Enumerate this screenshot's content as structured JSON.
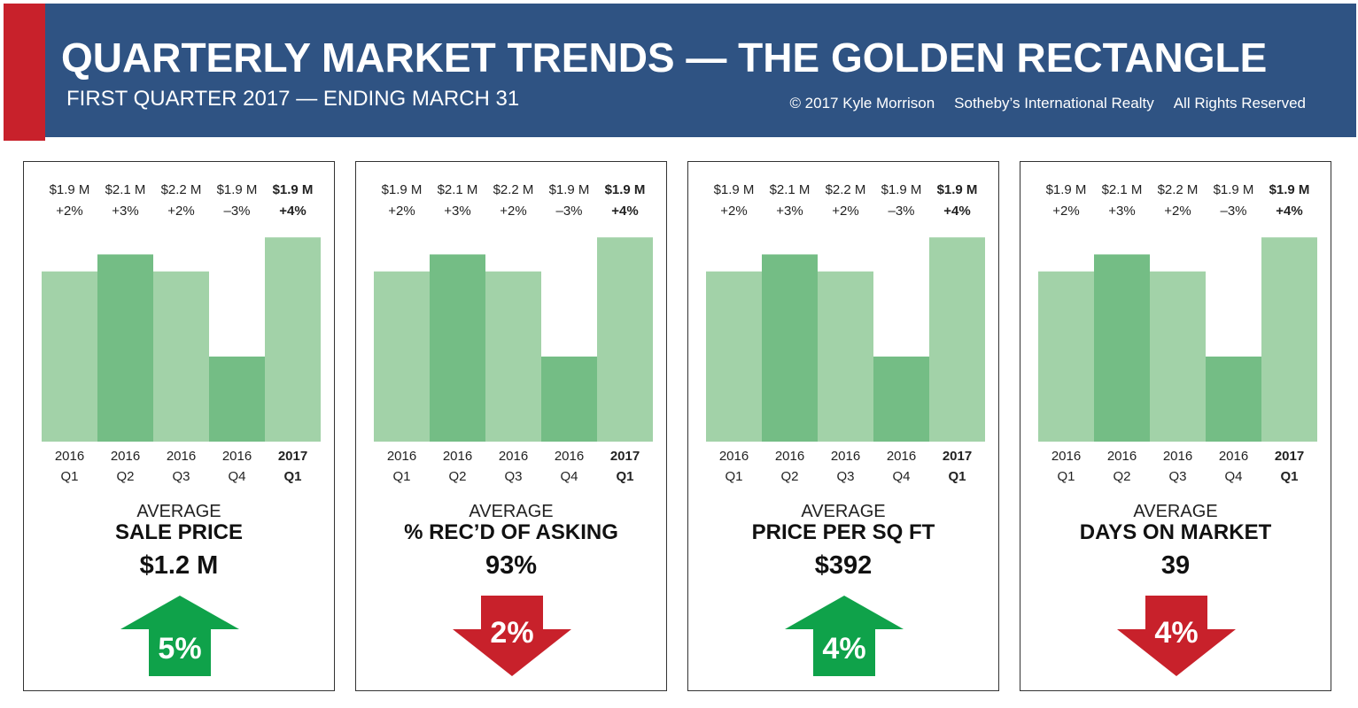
{
  "header": {
    "title": "QUARTERLY MARKET TRENDS — THE GOLDEN RECTANGLE",
    "subtitle": "FIRST QUARTER 2017 — ENDING MARCH 31",
    "credits": [
      "© 2017 Kyle Morrison",
      "Sotheby’s International Realty",
      "All Rights Reserved"
    ]
  },
  "colors": {
    "header_bg": "#2f5383",
    "accent_red": "#c8212b",
    "bar_light": "#a2d2a8",
    "bar_dark": "#74bd85",
    "arrow_up": "#0fa24a",
    "arrow_down": "#c8212b"
  },
  "chart_data": [
    {
      "type": "bar",
      "categories": [
        "2016 Q1",
        "2016 Q2",
        "2016 Q3",
        "2016 Q4",
        "2017 Q1"
      ],
      "category_lines": [
        [
          "2016",
          "Q1"
        ],
        [
          "2016",
          "Q2"
        ],
        [
          "2016",
          "Q3"
        ],
        [
          "2016",
          "Q4"
        ],
        [
          "2017",
          "Q1"
        ]
      ],
      "bar_labels": [
        "$1.9 M",
        "$2.1 M",
        "$2.2 M",
        "$1.9 M",
        "$1.9 M"
      ],
      "change_labels": [
        "+2%",
        "+3%",
        "+2%",
        "–3%",
        "+4%"
      ],
      "values": [
        2,
        3,
        2,
        -3,
        4
      ],
      "value_unit": "% change",
      "ylim": [
        -8,
        5
      ],
      "bar_shades": [
        "light",
        "dark",
        "light",
        "dark",
        "light"
      ],
      "metric": {
        "prefix": "AVERAGE",
        "name": "SALE PRICE",
        "value": "$1.2 M"
      },
      "trend": {
        "direction": "up",
        "percent": "5%"
      }
    },
    {
      "type": "bar",
      "categories": [
        "2016 Q1",
        "2016 Q2",
        "2016 Q3",
        "2016 Q4",
        "2017 Q1"
      ],
      "category_lines": [
        [
          "2016",
          "Q1"
        ],
        [
          "2016",
          "Q2"
        ],
        [
          "2016",
          "Q3"
        ],
        [
          "2016",
          "Q4"
        ],
        [
          "2017",
          "Q1"
        ]
      ],
      "bar_labels": [
        "$1.9 M",
        "$2.1 M",
        "$2.2 M",
        "$1.9 M",
        "$1.9 M"
      ],
      "change_labels": [
        "+2%",
        "+3%",
        "+2%",
        "–3%",
        "+4%"
      ],
      "values": [
        2,
        3,
        2,
        -3,
        4
      ],
      "value_unit": "% change",
      "ylim": [
        -8,
        5
      ],
      "bar_shades": [
        "light",
        "dark",
        "light",
        "dark",
        "light"
      ],
      "metric": {
        "prefix": "AVERAGE",
        "name": "% REC’D OF ASKING",
        "value": "93%"
      },
      "trend": {
        "direction": "down",
        "percent": "2%"
      }
    },
    {
      "type": "bar",
      "categories": [
        "2016 Q1",
        "2016 Q2",
        "2016 Q3",
        "2016 Q4",
        "2017 Q1"
      ],
      "category_lines": [
        [
          "2016",
          "Q1"
        ],
        [
          "2016",
          "Q2"
        ],
        [
          "2016",
          "Q3"
        ],
        [
          "2016",
          "Q4"
        ],
        [
          "2017",
          "Q1"
        ]
      ],
      "bar_labels": [
        "$1.9 M",
        "$2.1 M",
        "$2.2 M",
        "$1.9 M",
        "$1.9 M"
      ],
      "change_labels": [
        "+2%",
        "+3%",
        "+2%",
        "–3%",
        "+4%"
      ],
      "values": [
        2,
        3,
        2,
        -3,
        4
      ],
      "value_unit": "% change",
      "ylim": [
        -8,
        5
      ],
      "bar_shades": [
        "light",
        "dark",
        "light",
        "dark",
        "light"
      ],
      "metric": {
        "prefix": "AVERAGE",
        "name": "PRICE PER SQ FT",
        "value": "$392"
      },
      "trend": {
        "direction": "up",
        "percent": "4%"
      }
    },
    {
      "type": "bar",
      "categories": [
        "2016 Q1",
        "2016 Q2",
        "2016 Q3",
        "2016 Q4",
        "2017 Q1"
      ],
      "category_lines": [
        [
          "2016",
          "Q1"
        ],
        [
          "2016",
          "Q2"
        ],
        [
          "2016",
          "Q3"
        ],
        [
          "2016",
          "Q4"
        ],
        [
          "2017",
          "Q1"
        ]
      ],
      "bar_labels": [
        "$1.9 M",
        "$2.1 M",
        "$2.2 M",
        "$1.9 M",
        "$1.9 M"
      ],
      "change_labels": [
        "+2%",
        "+3%",
        "+2%",
        "–3%",
        "+4%"
      ],
      "values": [
        2,
        3,
        2,
        -3,
        4
      ],
      "value_unit": "% change",
      "ylim": [
        -8,
        5
      ],
      "bar_shades": [
        "light",
        "dark",
        "light",
        "dark",
        "light"
      ],
      "metric": {
        "prefix": "AVERAGE",
        "name": "DAYS ON MARKET",
        "value": "39"
      },
      "trend": {
        "direction": "down",
        "percent": "4%"
      }
    }
  ]
}
